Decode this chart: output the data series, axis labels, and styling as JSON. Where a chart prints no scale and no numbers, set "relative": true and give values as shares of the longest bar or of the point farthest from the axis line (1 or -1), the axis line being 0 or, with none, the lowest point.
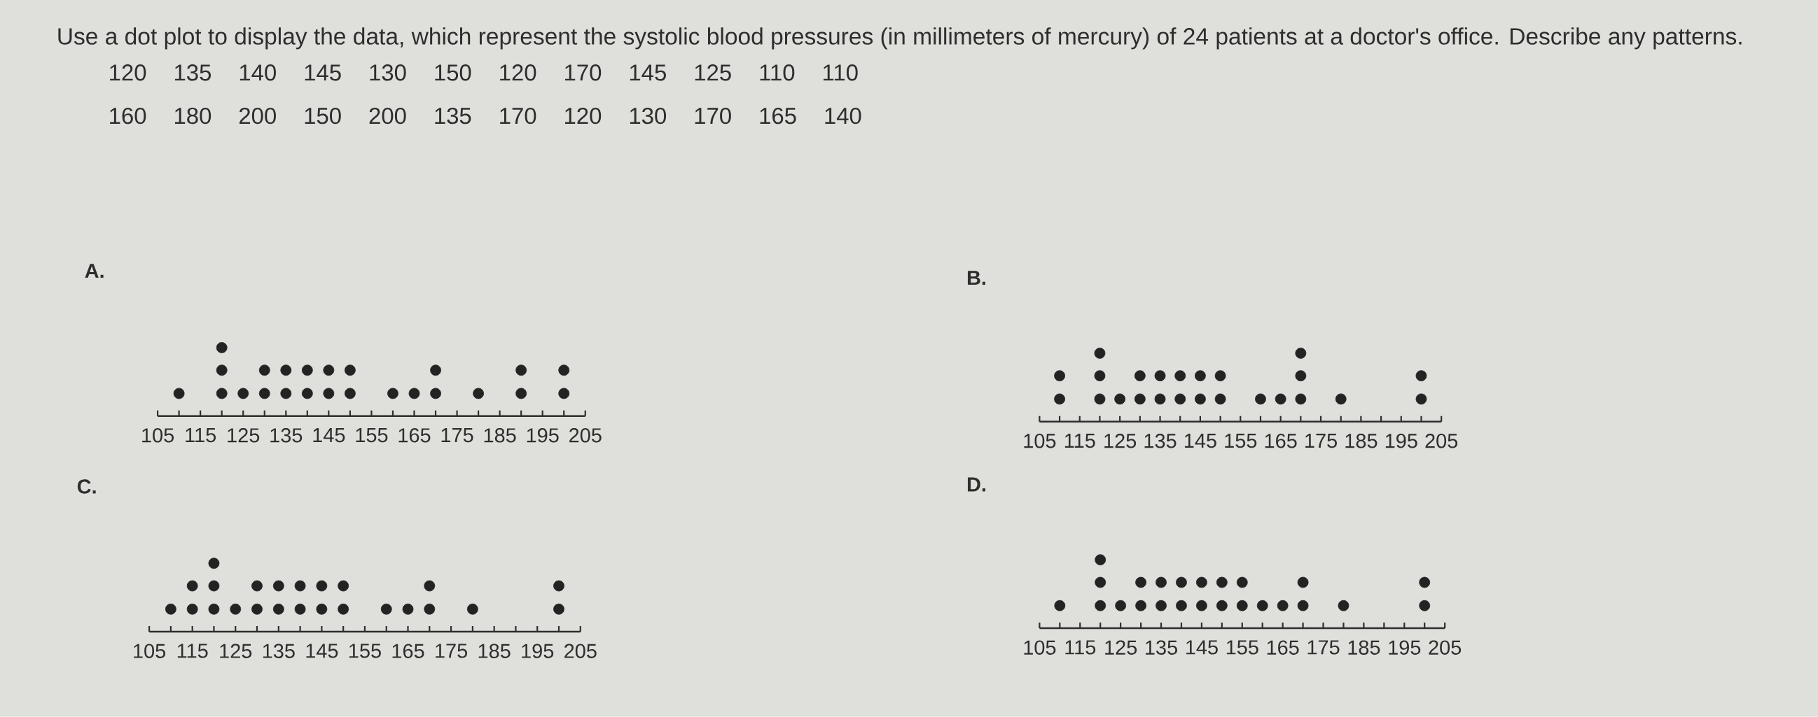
{
  "chart_data": [
    {
      "type": "other",
      "title": "Use a dot plot to display the data, which represent the systolic blood pressures (in millimeters of mercury) of 24 patients at a doctor's office. Describe any patterns.",
      "annotations": [
        "120 135 140 145 130 150 120 170 145 125 110 110",
        "160 180 200 150 200 135 170 120 130 170 165 140"
      ]
    },
    {
      "type": "scatter",
      "title": "A.",
      "relative": true,
      "marker": "circle",
      "color": "#232323",
      "tick_labels": "x",
      "xlim": [
        105,
        205
      ],
      "xticks": [
        105,
        {
          "value": 110,
          "label": null
        },
        115,
        {
          "value": 120,
          "label": null
        },
        125,
        {
          "value": 130,
          "label": null
        },
        135,
        {
          "value": 140,
          "label": null
        },
        145,
        {
          "value": 150,
          "label": null
        },
        155,
        {
          "value": 160,
          "label": null
        },
        165,
        {
          "value": 170,
          "label": null
        },
        175,
        {
          "value": 180,
          "label": null
        },
        185,
        {
          "value": 190,
          "label": null
        },
        195,
        {
          "value": 200,
          "label": null
        },
        205
      ],
      "x": [
        110,
        120,
        120,
        120,
        125,
        130,
        130,
        135,
        135,
        140,
        140,
        145,
        145,
        150,
        150,
        160,
        165,
        170,
        170,
        180,
        190,
        190,
        200,
        200
      ],
      "values": [
        0.33,
        0.33,
        0.67,
        1,
        0.33,
        0.33,
        0.67,
        0.33,
        0.67,
        0.33,
        0.67,
        0.33,
        0.67,
        0.33,
        0.67,
        0.33,
        0.33,
        0.33,
        0.67,
        0.33,
        0.33,
        0.67,
        0.33,
        0.67
      ]
    },
    {
      "type": "scatter",
      "title": "B.",
      "relative": true,
      "marker": "circle",
      "color": "#232323",
      "tick_labels": "x",
      "xlim": [
        105,
        205
      ],
      "xticks": [
        105,
        {
          "value": 110,
          "label": null
        },
        115,
        {
          "value": 120,
          "label": null
        },
        125,
        {
          "value": 130,
          "label": null
        },
        135,
        {
          "value": 140,
          "label": null
        },
        145,
        {
          "value": 150,
          "label": null
        },
        155,
        {
          "value": 160,
          "label": null
        },
        165,
        {
          "value": 170,
          "label": null
        },
        175,
        {
          "value": 180,
          "label": null
        },
        185,
        {
          "value": 190,
          "label": null
        },
        195,
        {
          "value": 200,
          "label": null
        },
        205
      ],
      "x": [
        110,
        110,
        120,
        120,
        120,
        125,
        130,
        130,
        135,
        135,
        140,
        140,
        145,
        145,
        150,
        150,
        160,
        165,
        170,
        170,
        170,
        180,
        200,
        200
      ],
      "values": [
        0.33,
        0.67,
        0.33,
        0.67,
        1,
        0.33,
        0.33,
        0.67,
        0.33,
        0.67,
        0.33,
        0.67,
        0.33,
        0.67,
        0.33,
        0.67,
        0.33,
        0.33,
        0.33,
        0.67,
        1,
        0.33,
        0.33,
        0.67
      ]
    },
    {
      "type": "scatter",
      "title": "C.",
      "relative": true,
      "marker": "circle",
      "color": "#232323",
      "tick_labels": "x",
      "xlim": [
        105,
        205
      ],
      "xticks": [
        105,
        {
          "value": 110,
          "label": null
        },
        115,
        {
          "value": 120,
          "label": null
        },
        125,
        {
          "value": 130,
          "label": null
        },
        135,
        {
          "value": 140,
          "label": null
        },
        145,
        {
          "value": 150,
          "label": null
        },
        155,
        {
          "value": 160,
          "label": null
        },
        165,
        {
          "value": 170,
          "label": null
        },
        175,
        {
          "value": 180,
          "label": null
        },
        185,
        {
          "value": 190,
          "label": null
        },
        195,
        {
          "value": 200,
          "label": null
        },
        205
      ],
      "x": [
        110,
        115,
        115,
        120,
        120,
        120,
        125,
        130,
        130,
        135,
        135,
        140,
        140,
        145,
        145,
        150,
        150,
        160,
        165,
        170,
        170,
        180,
        200,
        200
      ],
      "values": [
        0.33,
        0.33,
        0.67,
        0.33,
        0.67,
        1,
        0.33,
        0.33,
        0.67,
        0.33,
        0.67,
        0.33,
        0.67,
        0.33,
        0.67,
        0.33,
        0.67,
        0.33,
        0.33,
        0.33,
        0.67,
        0.33,
        0.33,
        0.67
      ]
    },
    {
      "type": "scatter",
      "title": "D.",
      "relative": true,
      "marker": "circle",
      "color": "#232323",
      "tick_labels": "x",
      "xlim": [
        105,
        205
      ],
      "xticks": [
        105,
        {
          "value": 110,
          "label": null
        },
        115,
        {
          "value": 120,
          "label": null
        },
        125,
        {
          "value": 130,
          "label": null
        },
        135,
        {
          "value": 140,
          "label": null
        },
        145,
        {
          "value": 150,
          "label": null
        },
        155,
        {
          "value": 160,
          "label": null
        },
        165,
        {
          "value": 170,
          "label": null
        },
        175,
        {
          "value": 180,
          "label": null
        },
        185,
        {
          "value": 190,
          "label": null
        },
        195,
        {
          "value": 200,
          "label": null
        },
        205
      ],
      "x": [
        110,
        120,
        120,
        120,
        125,
        130,
        130,
        135,
        135,
        140,
        140,
        145,
        145,
        150,
        150,
        155,
        155,
        160,
        165,
        170,
        170,
        180,
        200,
        200
      ],
      "values": [
        0.33,
        0.33,
        0.67,
        1,
        0.33,
        0.33,
        0.67,
        0.33,
        0.67,
        0.33,
        0.67,
        0.33,
        0.67,
        0.33,
        0.67,
        0.33,
        0.67,
        0.33,
        0.33,
        0.33,
        0.67,
        0.33,
        0.33,
        0.67
      ]
    }
  ]
}
